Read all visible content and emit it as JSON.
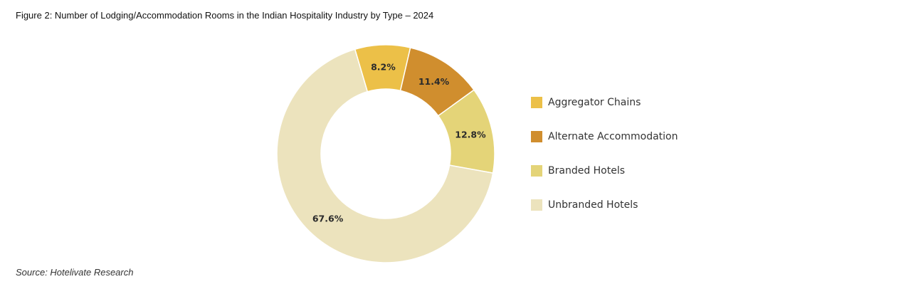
{
  "figure": {
    "title": "Figure 2: Number of Lodging/Accommodation Rooms in the Indian Hospitality Industry by Type – 2024",
    "source": "Source: Hotelivate Research"
  },
  "chart_data": {
    "type": "pie",
    "variant": "donut",
    "categories": [
      "Aggregator Chains",
      "Alternate Accommodation",
      "Branded Hotels",
      "Unbranded Hotels"
    ],
    "values": [
      8.2,
      11.4,
      12.8,
      67.6
    ],
    "labels": [
      "8.2%",
      "11.4%",
      "12.8%",
      "67.6%"
    ],
    "unit": "%",
    "colors": [
      "#ECC048",
      "#D08E2E",
      "#E4D478",
      "#ECE3BD"
    ],
    "legend": {
      "position": "right"
    },
    "title": ""
  }
}
